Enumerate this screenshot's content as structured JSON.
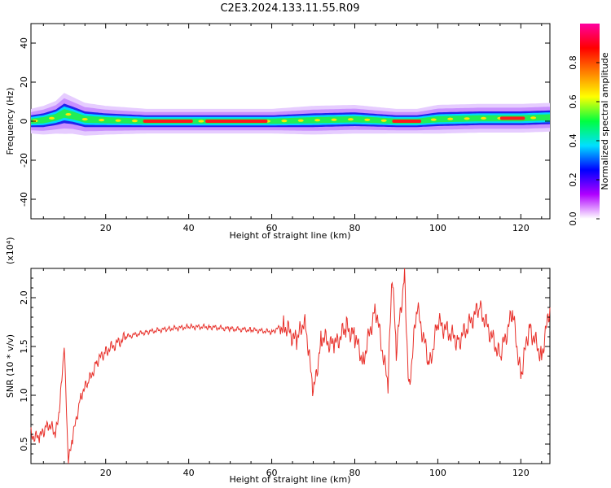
{
  "title": "C2E3.2024.133.11.55.R09",
  "chart_data": [
    {
      "type": "heatmap",
      "xlabel": "Height of straight line (km)",
      "ylabel": "Frequency (Hz)",
      "xlim": [
        2,
        127
      ],
      "ylim": [
        -50,
        50
      ],
      "x_ticks": [
        20,
        40,
        60,
        80,
        100,
        120
      ],
      "y_ticks": [
        -40,
        -20,
        0,
        20,
        40
      ],
      "colorbar": {
        "label": "Normalized spectral amplitude",
        "range": [
          0,
          1
        ],
        "ticks": [
          "0.0",
          "0.2",
          "0.4",
          "0.6",
          "0.8"
        ],
        "scale": [
          "#ffffff",
          "#b000ff",
          "#0000ff",
          "#00e0ff",
          "#00ff40",
          "#ffff00",
          "#ff8000",
          "#ff0000",
          "#ff00a0"
        ]
      },
      "band": {
        "x": [
          2,
          5,
          8,
          10,
          12,
          15,
          20,
          30,
          40,
          50,
          60,
          70,
          80,
          90,
          95,
          100,
          110,
          120,
          127
        ],
        "center_hz": [
          0,
          0.5,
          2,
          4,
          3,
          1,
          0.5,
          0,
          0,
          0,
          0,
          0.5,
          1,
          0,
          0,
          1,
          1.5,
          1.5,
          2
        ],
        "halfwidth_hz": [
          3,
          3.5,
          4,
          5,
          4.5,
          4,
          3.5,
          3,
          3,
          3,
          3,
          3.5,
          3.5,
          3,
          3,
          3.5,
          3.5,
          3.5,
          3.5
        ],
        "peaks": [
          {
            "x1": 29,
            "x2": 41
          },
          {
            "x1": 44,
            "x2": 59
          },
          {
            "x1": 89,
            "x2": 96
          },
          {
            "x1": 115,
            "x2": 121
          }
        ]
      }
    },
    {
      "type": "line",
      "xlabel": "Height of straight line (km)",
      "ylabel": "SNR (10 * v/v)",
      "multiplier": "(x10⁴)",
      "xlim": [
        2,
        127
      ],
      "ylim": [
        0.3,
        2.3
      ],
      "x_ticks": [
        20,
        40,
        60,
        80,
        100,
        120
      ],
      "y_ticks": [
        "0.5",
        "1.0",
        "1.5",
        "2.0"
      ],
      "color": "#e8302a",
      "x": [
        2,
        4,
        6,
        8,
        9,
        10,
        11,
        12,
        14,
        16,
        18,
        20,
        25,
        30,
        35,
        40,
        45,
        50,
        55,
        60,
        63,
        66,
        68,
        70,
        72,
        75,
        78,
        80,
        82,
        85,
        88,
        89,
        90,
        92,
        93,
        95,
        98,
        100,
        105,
        110,
        115,
        118,
        120,
        122,
        125,
        127
      ],
      "y": [
        0.6,
        0.55,
        0.72,
        0.6,
        0.9,
        1.5,
        0.3,
        0.55,
        1.0,
        1.15,
        1.35,
        1.45,
        1.6,
        1.65,
        1.68,
        1.7,
        1.7,
        1.68,
        1.67,
        1.65,
        1.72,
        1.55,
        1.8,
        1.0,
        1.6,
        1.5,
        1.7,
        1.6,
        1.35,
        1.9,
        1.1,
        2.25,
        1.45,
        2.25,
        1.05,
        1.9,
        1.3,
        1.75,
        1.55,
        1.9,
        1.4,
        1.85,
        1.2,
        1.7,
        1.4,
        1.9
      ]
    }
  ]
}
